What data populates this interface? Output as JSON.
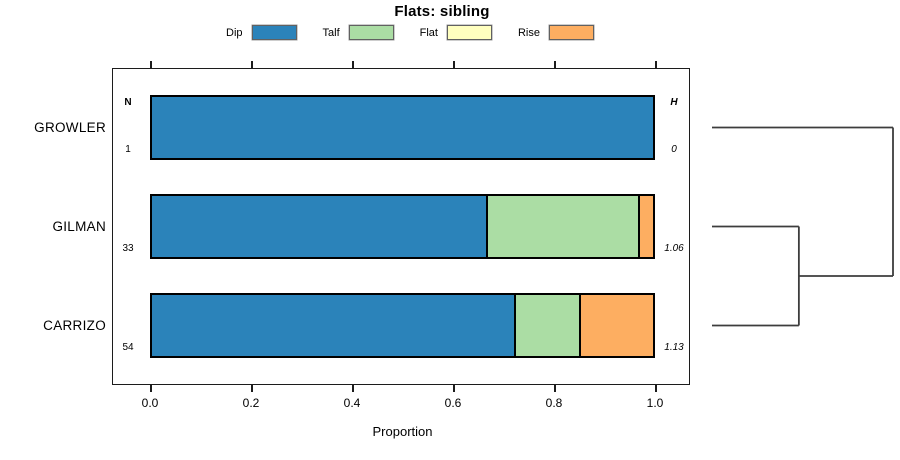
{
  "figure": {
    "title": "Flats: sibling"
  },
  "chart_data": {
    "type": "bar",
    "orientation": "horizontal",
    "stacked": true,
    "title": "Flats: sibling",
    "xlabel": "Proportion",
    "xlim": [
      0,
      1
    ],
    "xticks": [
      "0.0",
      "0.2",
      "0.4",
      "0.6",
      "0.8",
      "1.0"
    ],
    "grid": false,
    "legend_position": "top",
    "legend": [
      {
        "label": "Dip",
        "color": "#2b83ba"
      },
      {
        "label": "Talf",
        "color": "#abdda4"
      },
      {
        "label": "Flat",
        "color": "#ffffbf"
      },
      {
        "label": "Rise",
        "color": "#fdae61"
      }
    ],
    "count_header": "N",
    "diversity_header": "H",
    "rows": [
      {
        "label": "GROWLER",
        "n": "1",
        "h": "0",
        "segments": [
          {
            "name": "Dip",
            "value": 1.0
          }
        ]
      },
      {
        "label": "GILMAN",
        "n": "33",
        "h": "1.06",
        "segments": [
          {
            "name": "Dip",
            "value": 0.667
          },
          {
            "name": "Talf",
            "value": 0.303
          },
          {
            "name": "Rise",
            "value": 0.03
          }
        ]
      },
      {
        "label": "CARRIZO",
        "n": "54",
        "h": "1.13",
        "segments": [
          {
            "name": "Dip",
            "value": 0.722
          },
          {
            "name": "Talf",
            "value": 0.13
          },
          {
            "name": "Rise",
            "value": 0.148
          }
        ]
      }
    ],
    "dendrogram": {
      "leaf_order": [
        "GROWLER",
        "GILMAN",
        "CARRIZO"
      ],
      "merges": [
        {
          "children": [
            [
              "leaf",
              1
            ],
            [
              "leaf",
              2
            ]
          ],
          "labels": [
            "GILMAN",
            "CARRIZO"
          ],
          "relative_height": 0.48
        },
        {
          "children": [
            [
              "leaf",
              0
            ],
            [
              "node",
              0
            ]
          ],
          "labels": [
            "GROWLER",
            "GILMAN+CARRIZO"
          ],
          "relative_height": 1.0
        }
      ]
    }
  }
}
